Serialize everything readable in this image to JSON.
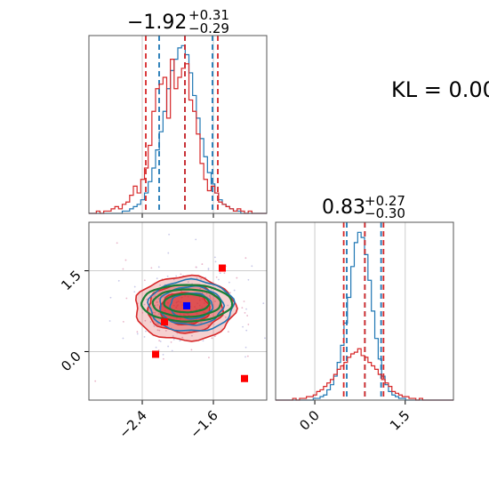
{
  "figure": {
    "kl_text": "KL = 0.00",
    "titles": {
      "x": {
        "value": "−1.92",
        "plus": "+0.31",
        "minus": "−0.29"
      },
      "y": {
        "value": "0.83",
        "plus": "+0.27",
        "minus": "−0.30"
      }
    }
  },
  "chart_data": [
    {
      "panel": "marginal-x",
      "type": "histogram",
      "xlim": [
        -3.0,
        -1.0
      ],
      "x_ticks": [
        "-2.4",
        "-1.6"
      ],
      "grid": true,
      "series": [
        {
          "color": "#1f77b4",
          "bin_edges_range": [
            -3.0,
            -1.0
          ],
          "bins": 48,
          "counts": [
            0,
            0,
            0,
            0,
            0,
            0,
            0,
            0,
            0,
            1,
            1,
            2,
            3,
            4,
            6,
            9,
            14,
            20,
            28,
            36,
            45,
            55,
            63,
            68,
            73,
            74,
            70,
            62,
            52,
            42,
            33,
            25,
            18,
            13,
            9,
            6,
            4,
            3,
            2,
            1,
            1,
            0,
            0,
            0,
            0,
            0,
            0,
            0
          ],
          "quantile_lines": [
            -2.21,
            -1.92,
            -1.61
          ],
          "quantile_styles": [
            "dashed",
            "dashed",
            "dashed"
          ]
        },
        {
          "color": "#d62728",
          "bin_edges_range": [
            -3.0,
            -1.0
          ],
          "bins": 48,
          "counts": [
            0,
            0,
            1,
            0,
            1,
            1,
            2,
            3,
            2,
            4,
            5,
            8,
            12,
            9,
            15,
            20,
            30,
            45,
            55,
            57,
            60,
            42,
            68,
            55,
            60,
            64,
            66,
            50,
            45,
            35,
            22,
            15,
            10,
            12,
            9,
            5,
            4,
            3,
            2,
            1,
            2,
            1,
            0,
            1,
            0,
            0,
            0,
            0
          ],
          "quantile_lines": [
            -2.36,
            -1.92,
            -1.55
          ],
          "quantile_styles": [
            "dashed",
            "dashed",
            "dashed"
          ]
        }
      ]
    },
    {
      "panel": "joint",
      "type": "contour",
      "xlim": [
        -3.0,
        -1.0
      ],
      "ylim": [
        -0.9,
        2.4
      ],
      "x_ticks": [
        "-2.4",
        "-1.6"
      ],
      "y_ticks": [
        "0.0",
        "1.5"
      ],
      "grid": true,
      "contours": [
        {
          "color": "#1f77b4",
          "center": [
            -1.85,
            0.85
          ],
          "sigma": [
            0.28,
            0.28
          ],
          "levels": [
            1,
            1.5,
            2
          ]
        },
        {
          "color": "#d62728",
          "center": [
            -1.92,
            0.8
          ],
          "sigma": [
            0.33,
            0.35
          ],
          "levels": [
            1,
            1.5,
            2
          ],
          "filled": true
        },
        {
          "color": "#1a7f37",
          "center": [
            -1.9,
            0.9
          ],
          "sigma": [
            0.3,
            0.2
          ],
          "levels": [
            1,
            1.5,
            2
          ]
        }
      ],
      "markers": [
        {
          "color": "#ff0000",
          "shape": "square",
          "x": -1.5,
          "y": 1.55
        },
        {
          "color": "#ff0000",
          "shape": "square",
          "x": -2.25,
          "y": -0.05
        },
        {
          "color": "#ff0000",
          "shape": "square",
          "x": -1.25,
          "y": -0.5
        },
        {
          "color": "#ff0000",
          "shape": "square",
          "x": -2.15,
          "y": 0.55
        },
        {
          "color": "#0000ff",
          "shape": "square",
          "x": -1.9,
          "y": 0.85
        }
      ]
    },
    {
      "panel": "marginal-y",
      "type": "histogram",
      "xlim": [
        -0.65,
        2.3
      ],
      "x_ticks": [
        "0.0",
        "1.5"
      ],
      "grid": true,
      "series": [
        {
          "color": "#1f77b4",
          "bin_edges_range": [
            -0.65,
            2.3
          ],
          "bins": 52,
          "counts": [
            0,
            0,
            0,
            0,
            0,
            0,
            0,
            0,
            0,
            0,
            0,
            1,
            1,
            2,
            3,
            6,
            9,
            14,
            22,
            32,
            45,
            60,
            78,
            92,
            98,
            95,
            85,
            70,
            52,
            36,
            24,
            14,
            9,
            5,
            3,
            2,
            1,
            1,
            0,
            0,
            0,
            0,
            0,
            0,
            0,
            0,
            0,
            0,
            0,
            0,
            0,
            0
          ],
          "quantile_lines": [
            0.53,
            0.83,
            1.1
          ],
          "quantile_styles": [
            "dashed",
            "dashed",
            "dashed"
          ]
        },
        {
          "color": "#d62728",
          "bin_edges_range": [
            -0.65,
            2.3
          ],
          "bins": 52,
          "counts": [
            0,
            0,
            0,
            0,
            0,
            1,
            0,
            1,
            1,
            2,
            2,
            3,
            5,
            6,
            8,
            10,
            12,
            15,
            18,
            20,
            22,
            25,
            27,
            28,
            30,
            26,
            25,
            22,
            20,
            18,
            15,
            12,
            10,
            8,
            5,
            4,
            3,
            2,
            2,
            1,
            1,
            0,
            1,
            0,
            0,
            0,
            0,
            0,
            0,
            0,
            0,
            0
          ],
          "quantile_lines": [
            0.48,
            0.83,
            1.14
          ],
          "quantile_styles": [
            "dashed",
            "dashed",
            "dashed"
          ]
        }
      ]
    }
  ]
}
